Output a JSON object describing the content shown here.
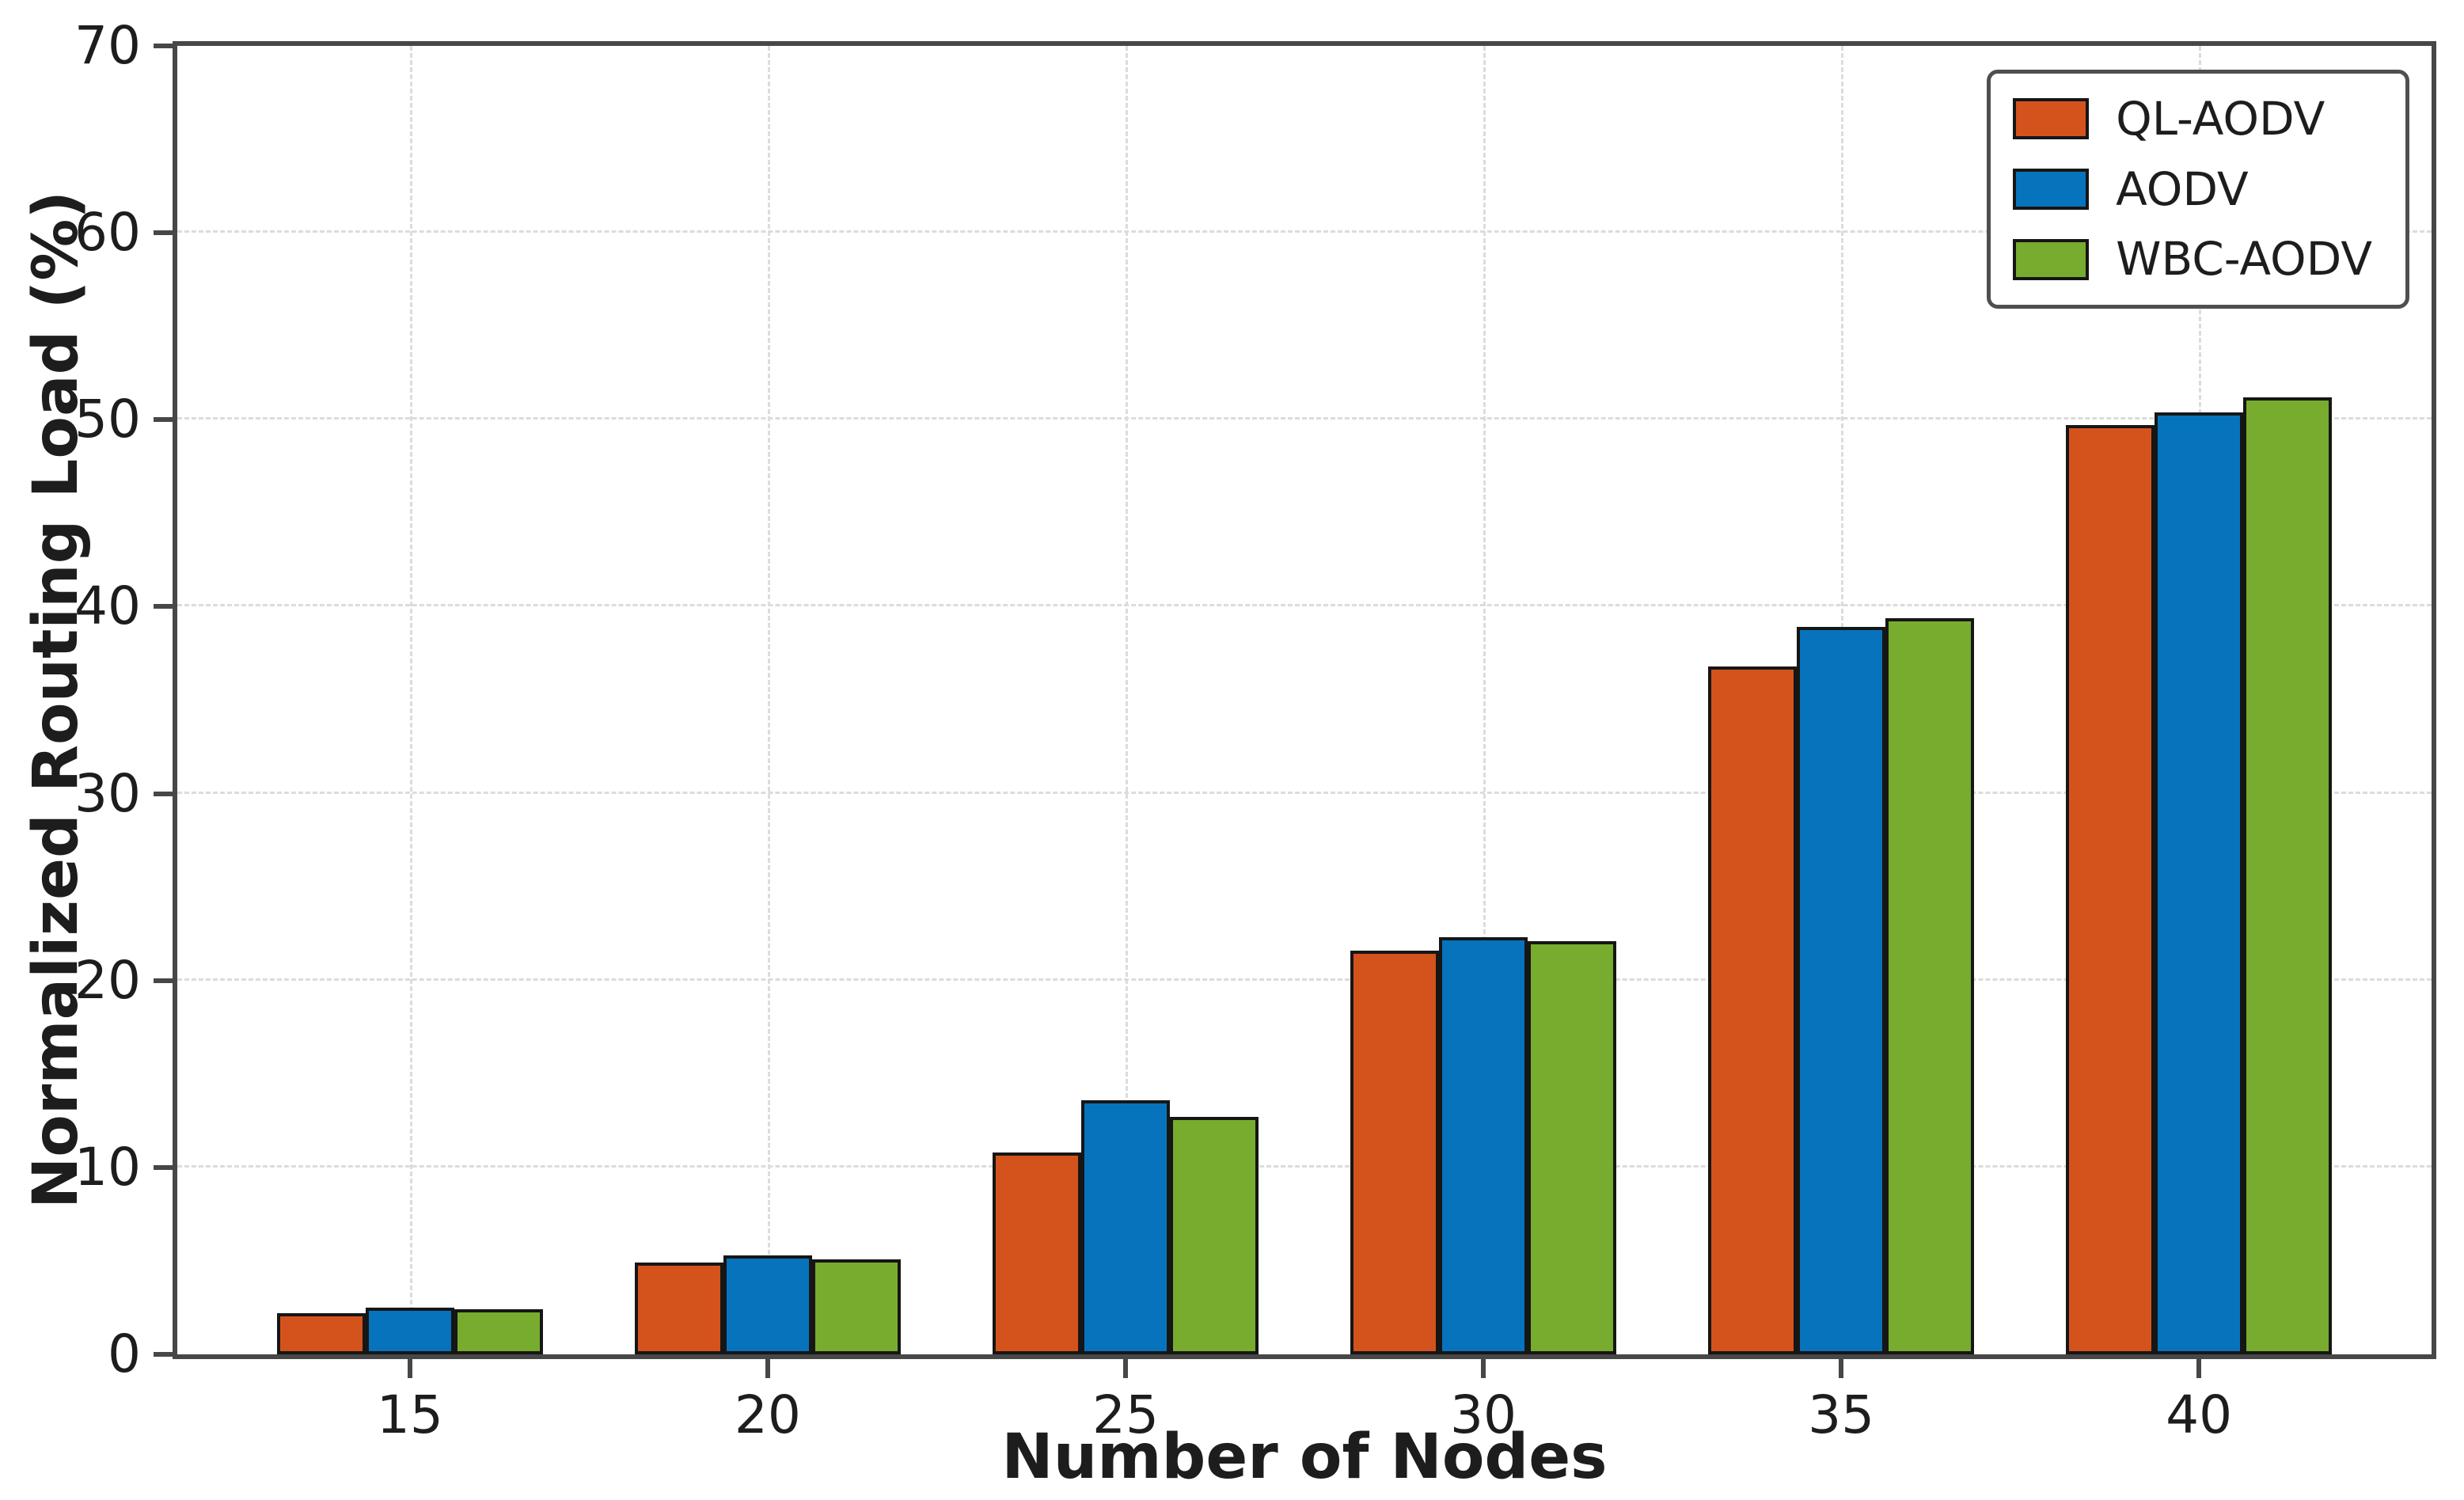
{
  "figure": {
    "background": "#ffffff"
  },
  "chart_data": {
    "type": "bar",
    "title": "",
    "xlabel": "Number of Nodes",
    "ylabel": "Normalized Routing Load (%)",
    "categories": [
      "15",
      "20",
      "25",
      "30",
      "35",
      "40"
    ],
    "series": [
      {
        "name": "QL-AODV",
        "color": "#d4531d",
        "values": [
          2.2,
          4.9,
          10.8,
          21.6,
          36.8,
          49.7
        ]
      },
      {
        "name": "AODV",
        "color": "#0773bc",
        "values": [
          2.5,
          5.3,
          13.6,
          22.3,
          38.9,
          50.4
        ]
      },
      {
        "name": "WBC-AODV",
        "color": "#77ac2e",
        "values": [
          2.4,
          5.1,
          12.7,
          22.1,
          39.4,
          51.2
        ]
      }
    ],
    "ylim": [
      0,
      70
    ],
    "yticks": [
      0,
      10,
      20,
      30,
      40,
      50,
      60,
      70
    ],
    "grid": "dashed horizontal and vertical gridlines",
    "legend_position": "upper right",
    "bar_edge_color": "#161616",
    "axis_color": "#474747",
    "grid_color": "#dcdcdc",
    "text_color": "#1d1d1d"
  }
}
